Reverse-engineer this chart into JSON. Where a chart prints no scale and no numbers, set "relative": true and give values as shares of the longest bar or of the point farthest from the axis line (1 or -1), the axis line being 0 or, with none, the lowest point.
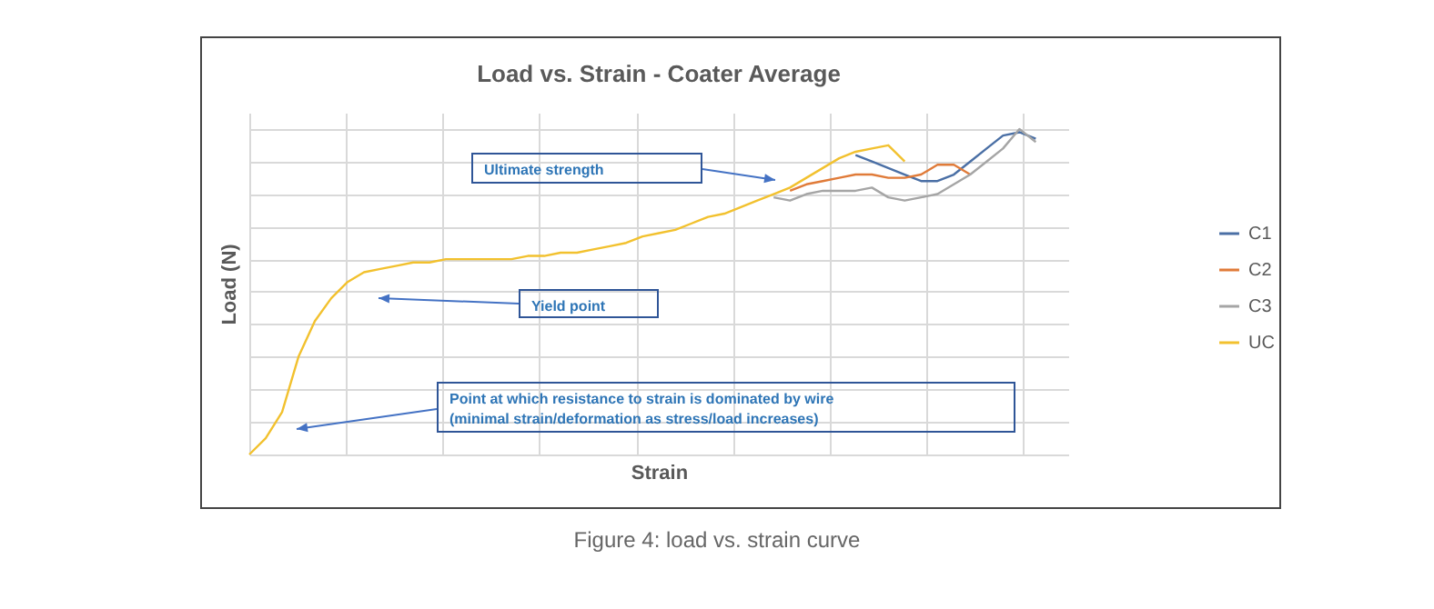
{
  "chart_data": {
    "type": "line",
    "title": "Load vs. Strain - Coater Average",
    "xlabel": "Strain",
    "ylabel": "Load (N)",
    "relative": true,
    "grid": true,
    "legend": "right",
    "marker": "none",
    "line_style": "solid",
    "categories": [
      null,
      null,
      null,
      null,
      null,
      null,
      null,
      null,
      null,
      null,
      null,
      null,
      null,
      null,
      null,
      null,
      null,
      null,
      null,
      null,
      null,
      null,
      null,
      null,
      null,
      null,
      null,
      null,
      null,
      null,
      null,
      null,
      null,
      null,
      null,
      null,
      null,
      null,
      null,
      null,
      null,
      null,
      null,
      null,
      null,
      null,
      null,
      null,
      null
    ],
    "series": [
      {
        "name": "C1",
        "color": "#4a6fa5",
        "values": [
          null,
          null,
          null,
          null,
          null,
          null,
          null,
          null,
          null,
          null,
          null,
          null,
          null,
          null,
          null,
          null,
          null,
          null,
          null,
          null,
          null,
          null,
          null,
          null,
          null,
          null,
          null,
          null,
          null,
          null,
          null,
          null,
          null,
          null,
          null,
          null,
          null,
          0.92,
          0.9,
          0.88,
          0.86,
          0.84,
          0.84,
          0.86,
          0.9,
          0.94,
          0.98,
          0.99,
          0.97
        ]
      },
      {
        "name": "C2",
        "color": "#e07b39",
        "values": [
          null,
          null,
          null,
          null,
          null,
          null,
          null,
          null,
          null,
          null,
          null,
          null,
          null,
          null,
          null,
          null,
          null,
          null,
          null,
          null,
          null,
          null,
          null,
          null,
          null,
          null,
          null,
          null,
          null,
          null,
          null,
          null,
          null,
          0.81,
          0.83,
          0.84,
          0.85,
          0.86,
          0.86,
          0.85,
          0.85,
          0.86,
          0.89,
          0.89,
          0.86,
          null,
          null,
          null,
          null
        ]
      },
      {
        "name": "C3",
        "color": "#a5a5a5",
        "values": [
          null,
          null,
          null,
          null,
          null,
          null,
          null,
          null,
          null,
          null,
          null,
          null,
          null,
          null,
          null,
          null,
          null,
          null,
          null,
          null,
          null,
          null,
          null,
          null,
          null,
          null,
          null,
          null,
          null,
          null,
          null,
          null,
          0.79,
          0.78,
          0.8,
          0.81,
          0.81,
          0.81,
          0.82,
          0.79,
          0.78,
          0.79,
          0.8,
          0.83,
          0.86,
          0.9,
          0.94,
          1.0,
          0.96
        ]
      },
      {
        "name": "UC",
        "color": "#f2c12e",
        "values": [
          0,
          0.05,
          0.13,
          0.3,
          0.41,
          0.48,
          0.53,
          0.56,
          0.57,
          0.58,
          0.59,
          0.59,
          0.6,
          0.6,
          0.6,
          0.6,
          0.6,
          0.61,
          0.61,
          0.62,
          0.62,
          0.63,
          0.64,
          0.65,
          0.67,
          0.68,
          0.69,
          0.71,
          0.73,
          0.74,
          0.76,
          0.78,
          0.8,
          0.82,
          0.85,
          0.88,
          0.91,
          0.93,
          0.94,
          0.95,
          0.9,
          null,
          null,
          null,
          null,
          null,
          null,
          null,
          null
        ]
      }
    ],
    "annotations": [
      "Ultimate strength",
      "Yield point",
      "Point at which resistance to strain is dominated by wire\n(minimal strain/deformation as stress/load increases)",
      "Figure 4: load vs. strain curve"
    ]
  }
}
